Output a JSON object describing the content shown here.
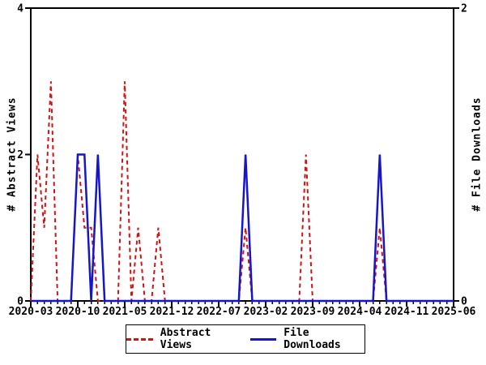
{
  "chart_data": {
    "type": "line",
    "title": "",
    "x_unit": "month",
    "x_start": "2020-03",
    "x_end": "2025-06",
    "x_tick_labels": [
      "2020-03",
      "2020-10",
      "2021-05",
      "2021-12",
      "2022-07",
      "2023-02",
      "2023-09",
      "2024-04",
      "2024-11",
      "2025-06"
    ],
    "x_major_tick_indices": [
      0,
      7,
      14,
      21,
      28,
      35,
      42,
      49,
      56,
      63
    ],
    "x_minor_tick_every_months": 1,
    "grid": "off",
    "background_color": "#ffffff",
    "axis_color": "#000000",
    "y_left": {
      "label": "# Abstract Views",
      "range": [
        0,
        4
      ],
      "ticks": [
        0,
        2,
        4
      ]
    },
    "y_right": {
      "label": "# File Downloads",
      "range": [
        0,
        2
      ],
      "ticks": [
        0,
        2
      ]
    },
    "series": [
      {
        "name": "Abstract Views",
        "axis": "left",
        "style": "dashed",
        "color": "#cc1515",
        "values": [
          0,
          2,
          1,
          3,
          0,
          0,
          0,
          2,
          1,
          1,
          0,
          0,
          0,
          0,
          3,
          0,
          1,
          0,
          0,
          1,
          0,
          0,
          0,
          0,
          0,
          0,
          0,
          0,
          0,
          0,
          0,
          0,
          1,
          0,
          0,
          0,
          0,
          0,
          0,
          0,
          0,
          2,
          0,
          0,
          0,
          0,
          0,
          0,
          0,
          0,
          0,
          0,
          1,
          0,
          0,
          0,
          0,
          0,
          0,
          0,
          0,
          0,
          0,
          0
        ]
      },
      {
        "name": "File Downloads",
        "axis": "right",
        "style": "solid",
        "color": "#1515cc",
        "values": [
          0,
          0,
          0,
          0,
          0,
          0,
          0,
          1,
          1,
          0,
          1,
          0,
          0,
          0,
          0,
          0,
          0,
          0,
          0,
          0,
          0,
          0,
          0,
          0,
          0,
          0,
          0,
          0,
          0,
          0,
          0,
          0,
          1,
          0,
          0,
          0,
          0,
          0,
          0,
          0,
          0,
          0,
          0,
          0,
          0,
          0,
          0,
          0,
          0,
          0,
          0,
          0,
          1,
          0,
          0,
          0,
          0,
          0,
          0,
          0,
          0,
          0,
          0,
          0
        ]
      }
    ],
    "legend": {
      "position": "bottom-center-outside",
      "entries": [
        "Abstract Views",
        "File Downloads"
      ]
    }
  }
}
